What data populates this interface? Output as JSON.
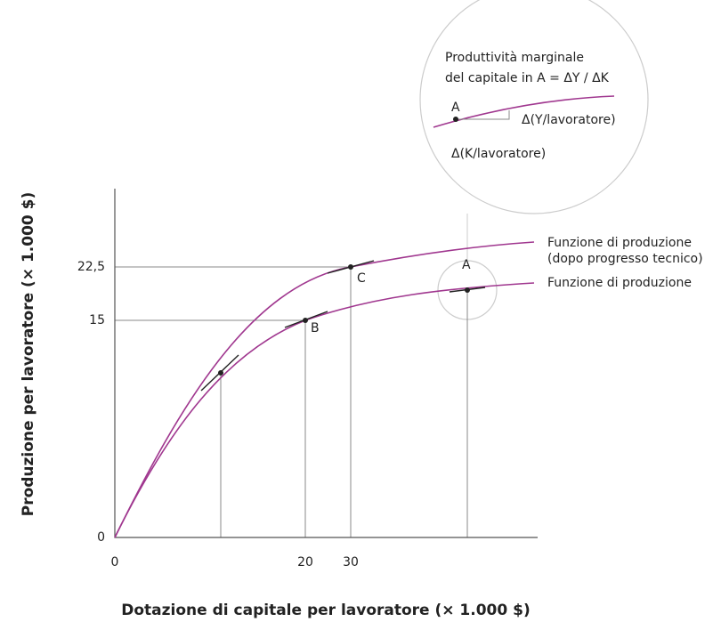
{
  "axes": {
    "y_title": "Produzione per lavoratore (× 1.000 $)",
    "x_title": "Dotazione di capitale per lavoratore (× 1.000 $)",
    "y_ticks": [
      "0",
      "15",
      "22,5"
    ],
    "x_ticks": [
      "0",
      "20",
      "30"
    ]
  },
  "curves": {
    "upper": [
      "Funzione di produzione",
      "(dopo progresso tecnico)"
    ],
    "lower": "Funzione di produzione"
  },
  "points": {
    "a": "A",
    "b": "B",
    "c": "C"
  },
  "inset": {
    "title": [
      "Produttività marginale",
      "del capitale in A = ΔY / ΔK"
    ],
    "point": "A",
    "dy": "Δ(Y/lavoratore)",
    "dx": "Δ(K/lavoratore)"
  }
}
